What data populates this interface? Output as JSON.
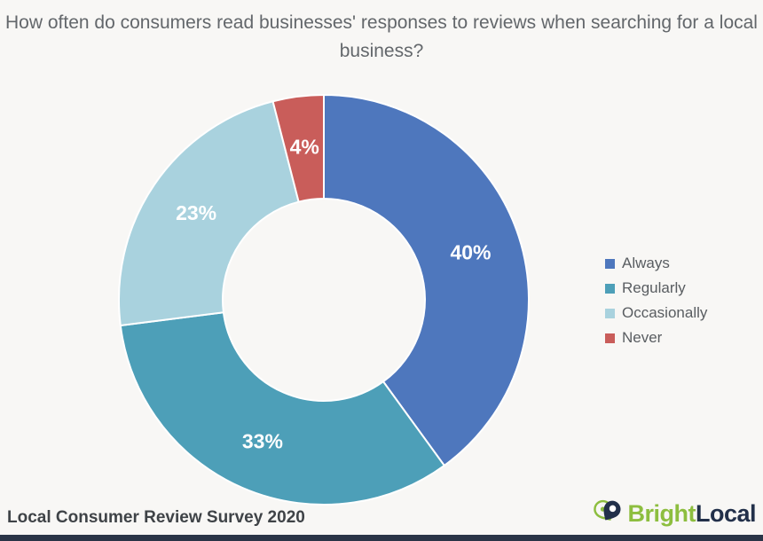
{
  "title": "How often do consumers read businesses' responses to reviews when searching for a local business?",
  "chart_data": {
    "type": "pie",
    "donut": true,
    "inner_radius_ratio": 0.49,
    "start_angle_deg": 0,
    "direction": "clockwise",
    "categories": [
      "Always",
      "Regularly",
      "Occasionally",
      "Never"
    ],
    "values": [
      40,
      33,
      23,
      4
    ],
    "slice_labels": [
      "40%",
      "33%",
      "23%",
      "4%"
    ],
    "colors": [
      "#4e77bd",
      "#4d9fb8",
      "#a9d2de",
      "#c95d5a"
    ],
    "title": "How often do consumers read businesses' responses to reviews when searching for a local business?",
    "legend_position": "right",
    "label_color": "#ffffff",
    "separator_color": "#ffffff"
  },
  "legend": {
    "items": [
      {
        "label": "Always",
        "color": "#4e77bd"
      },
      {
        "label": "Regularly",
        "color": "#4d9fb8"
      },
      {
        "label": "Occasionally",
        "color": "#a9d2de"
      },
      {
        "label": "Never",
        "color": "#c95d5a"
      }
    ]
  },
  "footer": {
    "source": "Local Consumer Review Survey 2020",
    "bar_color": "#2a3447"
  },
  "logo": {
    "bright": "Bright",
    "local": "Local",
    "green_color": "#8dbe3f",
    "navy_color": "#22304a",
    "icon": "map-pin-heart-icon"
  }
}
